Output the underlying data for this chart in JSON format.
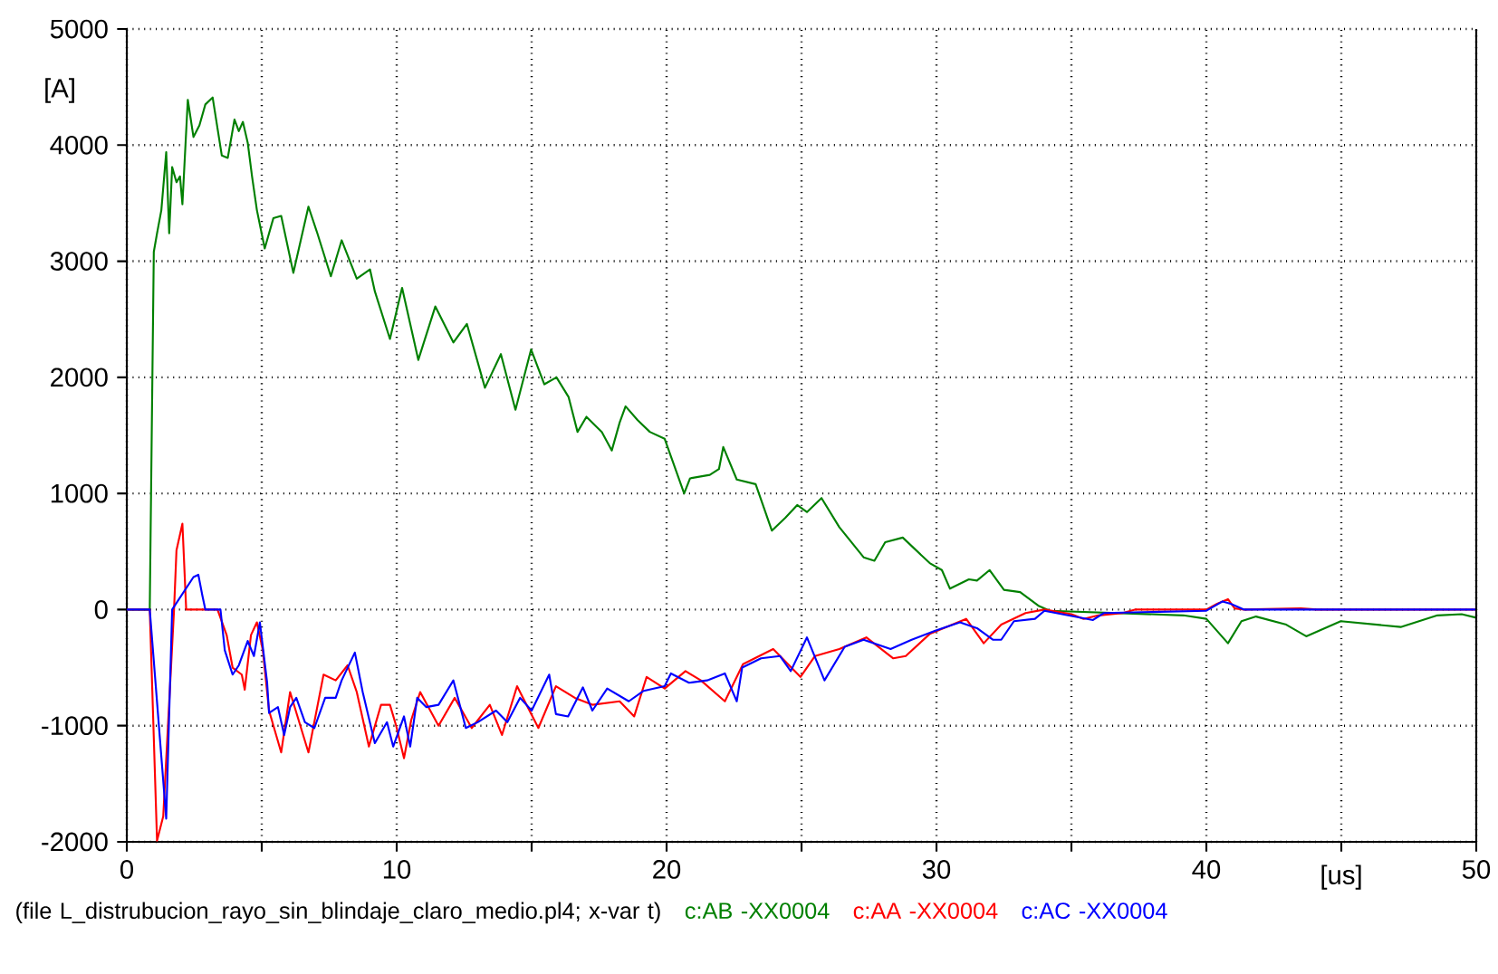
{
  "chart_data": {
    "type": "line",
    "xlabel": "[us]",
    "ylabel": "[A]",
    "xlim": [
      0,
      50
    ],
    "ylim": [
      -2000,
      5000
    ],
    "xticks": [
      0,
      {
        "value": 5,
        "label": null
      },
      10,
      {
        "value": 15,
        "label": null
      },
      20,
      {
        "value": 25,
        "label": null
      },
      30,
      {
        "value": 35,
        "label": null
      },
      40,
      {
        "value": 45,
        "label": null
      },
      50
    ],
    "yticks": [
      -2000,
      -1000,
      0,
      1000,
      2000,
      3000,
      4000,
      5000
    ],
    "grid": true,
    "legend": "bottom",
    "marker": "none",
    "line_style": "solid",
    "annotations": [
      "(file L_distrubucion_rayo_sin_blindaje_claro_medio.pl4; x-var t)"
    ],
    "series": [
      {
        "name": "c:AB -XX0004",
        "color": "#008000",
        "x": [
          0,
          0.85,
          1.0,
          1.12,
          1.28,
          1.46,
          1.57,
          1.68,
          1.84,
          1.97,
          2.06,
          2.26,
          2.47,
          2.69,
          2.91,
          3.18,
          3.52,
          3.74,
          3.99,
          4.15,
          4.3,
          4.48,
          4.64,
          4.82,
          5.11,
          5.43,
          5.72,
          6.17,
          6.73,
          7.06,
          7.56,
          7.96,
          8.3,
          8.52,
          9.01,
          9.19,
          9.75,
          10.2,
          10.8,
          11.43,
          12.1,
          12.6,
          13.27,
          13.86,
          14.4,
          14.98,
          15.47,
          15.92,
          16.37,
          16.7,
          17.03,
          17.6,
          17.97,
          18.26,
          18.48,
          18.93,
          19.38,
          19.93,
          20.16,
          20.65,
          20.87,
          21.6,
          21.94,
          22.1,
          22.6,
          23.3,
          23.9,
          24.4,
          24.84,
          25.2,
          25.74,
          26.4,
          27.3,
          27.7,
          28.1,
          28.75,
          29.75,
          30.2,
          30.5,
          31.2,
          31.5,
          31.97,
          32.5,
          33.1,
          33.8,
          34.2,
          39.15,
          40.0,
          40.8,
          41.3,
          41.84,
          42.96,
          43.7,
          44.98,
          47.2,
          48.56,
          49.46,
          50
        ],
        "values": [
          0,
          0,
          3080,
          3240,
          3440,
          3940,
          3240,
          3810,
          3680,
          3730,
          3490,
          4390,
          4070,
          4170,
          4350,
          4410,
          3910,
          3890,
          4220,
          4120,
          4200,
          4020,
          3730,
          3440,
          3110,
          3370,
          3390,
          2900,
          3470,
          3240,
          2870,
          3180,
          2980,
          2850,
          2930,
          2740,
          2330,
          2770,
          2150,
          2610,
          2300,
          2460,
          1910,
          2200,
          1720,
          2240,
          1940,
          2000,
          1830,
          1530,
          1660,
          1530,
          1370,
          1610,
          1750,
          1630,
          1530,
          1470,
          1320,
          1000,
          1130,
          1160,
          1210,
          1400,
          1120,
          1080,
          680,
          790,
          900,
          840,
          960,
          710,
          450,
          420,
          580,
          620,
          400,
          340,
          180,
          260,
          250,
          340,
          170,
          150,
          30,
          -10,
          -50,
          -80,
          -290,
          -100,
          -60,
          -130,
          -230,
          -100,
          -150,
          -50,
          -40,
          -70
        ]
      },
      {
        "name": "c:AA -XX0004",
        "color": "#ff0000",
        "x": [
          0,
          0.85,
          1.12,
          1.35,
          1.75,
          1.84,
          2.06,
          2.2,
          3.36,
          3.7,
          3.92,
          4.26,
          4.37,
          4.6,
          4.82,
          5.04,
          5.27,
          5.72,
          6.05,
          6.39,
          6.73,
          7.29,
          7.74,
          8.18,
          8.52,
          8.97,
          9.42,
          9.75,
          9.98,
          10.27,
          10.54,
          10.87,
          11.55,
          12.15,
          12.78,
          13.45,
          13.9,
          14.46,
          15.25,
          15.9,
          16.6,
          17.25,
          18.26,
          18.8,
          19.26,
          19.93,
          20.7,
          21.27,
          22.16,
          22.83,
          23.95,
          24.96,
          25.5,
          26.4,
          27.4,
          28.4,
          28.86,
          29.75,
          31.1,
          31.75,
          32.4,
          33.3,
          34.0,
          35,
          35.45,
          36,
          36.9,
          37.35,
          40,
          40.4,
          40.8,
          41.05,
          41.4,
          43.5,
          44.1,
          50
        ],
        "values": [
          0,
          0,
          -1990,
          -1780,
          0,
          510,
          740,
          0,
          0,
          -220,
          -500,
          -560,
          -690,
          -220,
          -110,
          -350,
          -870,
          -1230,
          -710,
          -970,
          -1230,
          -560,
          -610,
          -480,
          -710,
          -1180,
          -820,
          -820,
          -1000,
          -1280,
          -950,
          -710,
          -1000,
          -760,
          -1020,
          -820,
          -1080,
          -660,
          -1020,
          -660,
          -760,
          -820,
          -790,
          -920,
          -580,
          -680,
          -530,
          -610,
          -790,
          -470,
          -340,
          -580,
          -400,
          -340,
          -240,
          -420,
          -400,
          -210,
          -80,
          -290,
          -130,
          -30,
          0,
          -40,
          -80,
          -50,
          -30,
          0,
          0,
          50,
          90,
          10,
          0,
          10,
          0,
          0
        ]
      },
      {
        "name": "c:AC -XX0004",
        "color": "#0000ff",
        "x": [
          0,
          0.85,
          1.46,
          1.68,
          2.47,
          2.65,
          2.8,
          2.91,
          3.47,
          3.63,
          3.92,
          4.15,
          4.48,
          4.71,
          4.93,
          5.2,
          5.27,
          5.6,
          5.83,
          6.05,
          6.28,
          6.6,
          6.95,
          7.35,
          7.74,
          7.96,
          8.45,
          8.74,
          9.19,
          9.64,
          9.87,
          10.27,
          10.5,
          10.76,
          11.1,
          11.55,
          12.1,
          12.56,
          13.0,
          13.68,
          14.1,
          14.57,
          15.0,
          15.65,
          15.9,
          16.35,
          16.9,
          17.25,
          17.8,
          18.6,
          19.15,
          19.93,
          20.16,
          20.83,
          21.5,
          22.16,
          22.6,
          22.8,
          23.5,
          24.2,
          24.6,
          25.2,
          25.85,
          26.6,
          27.3,
          28.3,
          29.08,
          29.98,
          30.87,
          31.5,
          32.1,
          32.4,
          32.87,
          33.65,
          34.0,
          35.8,
          36.2,
          40,
          40.3,
          40.6,
          40.9,
          41.4,
          50
        ],
        "values": [
          0,
          0,
          -1800,
          0,
          280,
          300,
          120,
          0,
          0,
          -350,
          -560,
          -480,
          -270,
          -400,
          -110,
          -630,
          -890,
          -840,
          -1080,
          -840,
          -760,
          -970,
          -1020,
          -760,
          -760,
          -610,
          -370,
          -710,
          -1150,
          -970,
          -1180,
          -920,
          -1180,
          -760,
          -840,
          -820,
          -610,
          -1020,
          -970,
          -870,
          -970,
          -760,
          -870,
          -560,
          -900,
          -920,
          -670,
          -870,
          -680,
          -790,
          -700,
          -660,
          -550,
          -630,
          -610,
          -550,
          -790,
          -500,
          -420,
          -400,
          -530,
          -240,
          -610,
          -320,
          -260,
          -340,
          -260,
          -180,
          -110,
          -160,
          -260,
          -260,
          -100,
          -80,
          -10,
          -90,
          -30,
          -10,
          30,
          70,
          50,
          0,
          0
        ]
      }
    ]
  }
}
